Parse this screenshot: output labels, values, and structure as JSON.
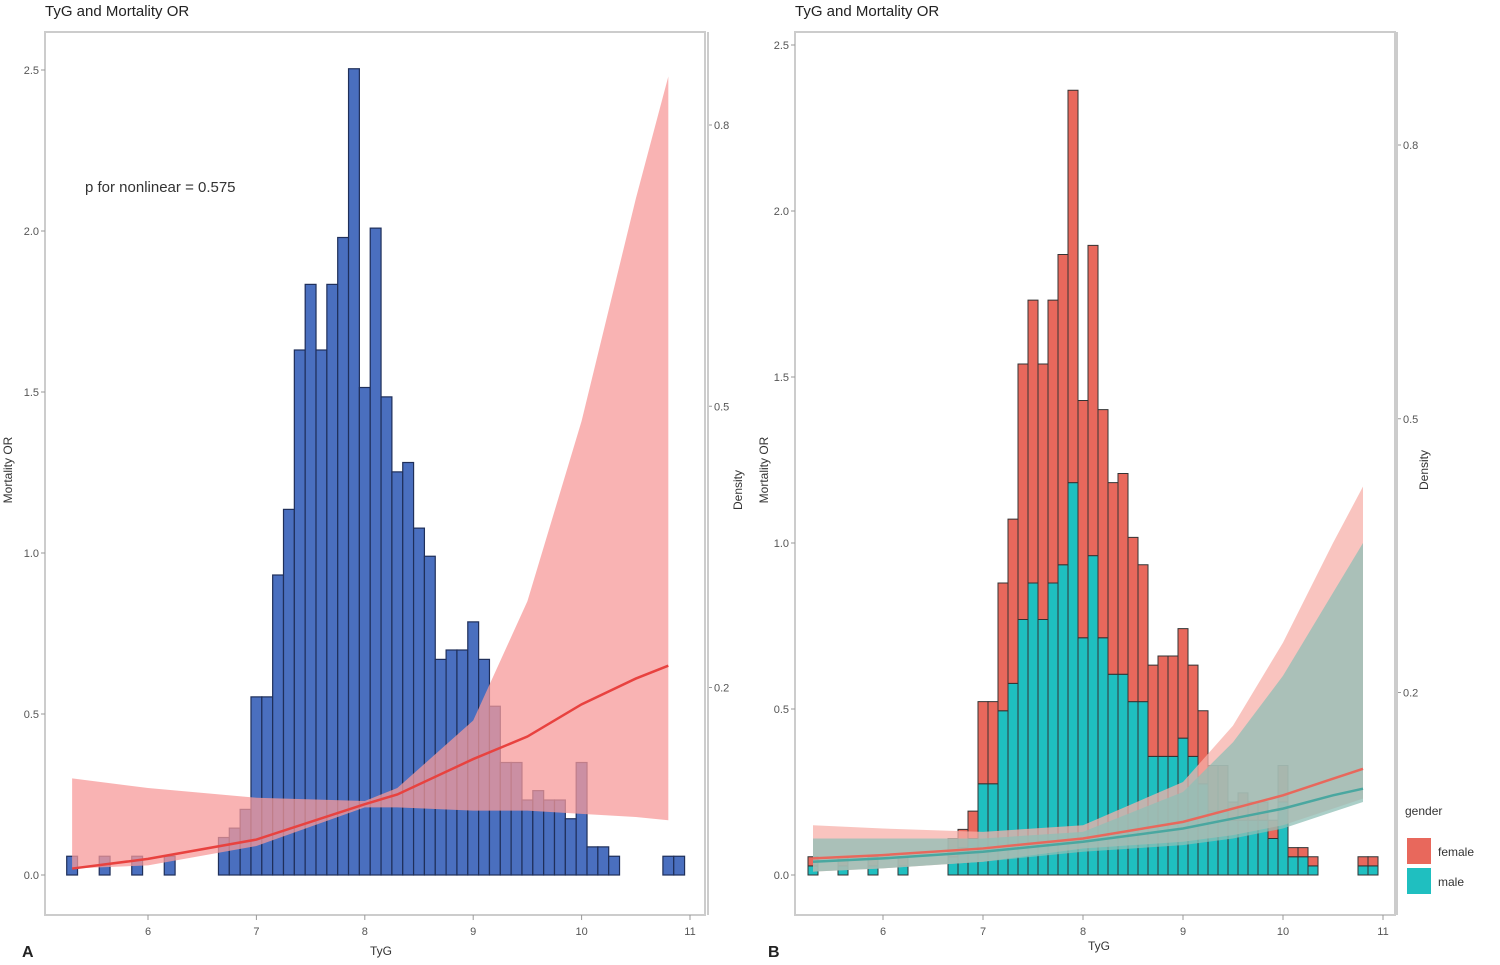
{
  "chart_data": [
    {
      "type": "bar+line",
      "panel_label": "A",
      "title": "TyG and Mortality OR",
      "xlabel": "TyG",
      "ylabel": "Mortality OR",
      "y2label": "Density",
      "annotation": "p for nonlinear = 0.575",
      "xlim": [
        5.2,
        11.1
      ],
      "x_ticks": [
        "6",
        "7",
        "8",
        "9",
        "10",
        "11"
      ],
      "ylim": [
        0,
        2.5
      ],
      "y_ticks": [
        "0.0",
        "0.5",
        "1.0",
        "1.5",
        "2.0",
        "2.5"
      ],
      "y2lim": [
        0,
        0.8
      ],
      "y2_ticks": [
        "0.2",
        "0.5",
        "0.8"
      ],
      "grid": false,
      "colors": {
        "bars": "#4a6fbf",
        "bar_edge": "#1f2f5a",
        "curve": "#e8423f",
        "ribbon": "#f79a9a"
      },
      "histogram": {
        "bin_width": 0.1,
        "x": [
          5.3,
          5.6,
          5.9,
          6.2,
          6.7,
          6.8,
          6.9,
          7.0,
          7.1,
          7.2,
          7.3,
          7.4,
          7.5,
          7.6,
          7.7,
          7.8,
          7.9,
          8.0,
          8.1,
          8.2,
          8.3,
          8.4,
          8.5,
          8.6,
          8.7,
          8.8,
          8.9,
          9.0,
          9.1,
          9.2,
          9.3,
          9.4,
          9.5,
          9.6,
          9.7,
          9.8,
          9.9,
          10.0,
          10.1,
          10.2,
          10.3,
          10.8,
          10.9
        ],
        "density": [
          0.02,
          0.02,
          0.02,
          0.02,
          0.04,
          0.05,
          0.07,
          0.19,
          0.19,
          0.32,
          0.39,
          0.56,
          0.63,
          0.56,
          0.63,
          0.68,
          0.86,
          0.52,
          0.69,
          0.51,
          0.43,
          0.44,
          0.37,
          0.34,
          0.23,
          0.24,
          0.24,
          0.27,
          0.23,
          0.18,
          0.12,
          0.12,
          0.08,
          0.09,
          0.08,
          0.08,
          0.06,
          0.12,
          0.03,
          0.03,
          0.02,
          0.02,
          0.02
        ]
      },
      "curves": [
        {
          "x": [
            5.3,
            6,
            7,
            8,
            8.3,
            9,
            9.5,
            10,
            10.5,
            10.8
          ],
          "or": [
            0.02,
            0.05,
            0.11,
            0.22,
            0.25,
            0.36,
            0.43,
            0.53,
            0.61,
            0.65
          ],
          "lower": [
            0.02,
            0.03,
            0.09,
            0.21,
            0.21,
            0.2,
            0.2,
            0.19,
            0.18,
            0.17
          ],
          "upper": [
            0.3,
            0.27,
            0.24,
            0.23,
            0.27,
            0.48,
            0.85,
            1.41,
            2.1,
            2.48
          ],
          "color": "#e8423f",
          "ribbon": "#f79a9a"
        }
      ]
    },
    {
      "type": "stacked-bar+line",
      "panel_label": "B",
      "title": "TyG and Mortality OR",
      "xlabel": "TyG",
      "ylabel": "Mortality OR",
      "y2label": "Density",
      "xlim": [
        5.2,
        11.1
      ],
      "x_ticks": [
        "6",
        "7",
        "8",
        "9",
        "10",
        "11"
      ],
      "ylim": [
        0,
        2.5
      ],
      "y_ticks": [
        "0.0",
        "0.5",
        "1.0",
        "1.5",
        "2.0",
        "2.5"
      ],
      "y2lim": [
        0,
        0.8
      ],
      "y2_ticks": [
        "0.2",
        "0.5",
        "0.8"
      ],
      "grid": false,
      "legend": {
        "title": "gender",
        "position": "right",
        "items": [
          {
            "label": "female",
            "color": "#e8685c"
          },
          {
            "label": "male",
            "color": "#1fbfc0"
          }
        ]
      },
      "histogram": {
        "bin_width": 0.1,
        "x": [
          5.3,
          5.6,
          5.9,
          6.2,
          6.7,
          6.8,
          6.9,
          7.0,
          7.1,
          7.2,
          7.3,
          7.4,
          7.5,
          7.6,
          7.7,
          7.8,
          7.9,
          8.0,
          8.1,
          8.2,
          8.3,
          8.4,
          8.5,
          8.6,
          8.7,
          8.8,
          8.9,
          9.0,
          9.1,
          9.2,
          9.3,
          9.4,
          9.5,
          9.6,
          9.7,
          9.8,
          9.9,
          10.0,
          10.1,
          10.2,
          10.3,
          10.8,
          10.9
        ],
        "series": [
          {
            "name": "male",
            "density": [
              0.01,
              0.01,
              0.01,
              0.01,
              0.02,
              0.03,
              0.04,
              0.1,
              0.1,
              0.18,
              0.21,
              0.28,
              0.32,
              0.28,
              0.32,
              0.34,
              0.43,
              0.26,
              0.35,
              0.26,
              0.22,
              0.22,
              0.19,
              0.19,
              0.13,
              0.13,
              0.13,
              0.15,
              0.13,
              0.1,
              0.07,
              0.07,
              0.06,
              0.06,
              0.06,
              0.06,
              0.04,
              0.08,
              0.02,
              0.02,
              0.01,
              0.01,
              0.01
            ]
          },
          {
            "name": "female",
            "density": [
              0.01,
              0.01,
              0.01,
              0.01,
              0.02,
              0.02,
              0.03,
              0.09,
              0.09,
              0.14,
              0.18,
              0.28,
              0.31,
              0.28,
              0.31,
              0.34,
              0.43,
              0.26,
              0.34,
              0.25,
              0.21,
              0.22,
              0.18,
              0.15,
              0.1,
              0.11,
              0.11,
              0.12,
              0.1,
              0.08,
              0.05,
              0.05,
              0.02,
              0.03,
              0.02,
              0.02,
              0.02,
              0.04,
              0.01,
              0.01,
              0.01,
              0.01,
              0.01
            ]
          }
        ]
      },
      "curves": [
        {
          "name": "female",
          "x": [
            5.3,
            6,
            7,
            8,
            9,
            9.5,
            10,
            10.5,
            10.8
          ],
          "or": [
            0.05,
            0.06,
            0.08,
            0.11,
            0.16,
            0.2,
            0.24,
            0.29,
            0.32
          ],
          "lower": [
            0.01,
            0.02,
            0.04,
            0.08,
            0.1,
            0.12,
            0.15,
            0.2,
            0.23
          ],
          "upper": [
            0.15,
            0.14,
            0.13,
            0.15,
            0.28,
            0.45,
            0.7,
            1.0,
            1.17
          ],
          "color": "#e8685c",
          "ribbon": "#f7b0aa"
        },
        {
          "name": "male",
          "x": [
            5.3,
            6,
            7,
            8,
            9,
            9.5,
            10,
            10.5,
            10.8
          ],
          "or": [
            0.04,
            0.05,
            0.07,
            0.1,
            0.14,
            0.17,
            0.2,
            0.24,
            0.26
          ],
          "lower": [
            0.01,
            0.02,
            0.04,
            0.07,
            0.09,
            0.11,
            0.14,
            0.19,
            0.22
          ],
          "upper": [
            0.11,
            0.11,
            0.11,
            0.13,
            0.25,
            0.4,
            0.6,
            0.85,
            1.0
          ],
          "color": "#4aa7a0",
          "ribbon": "#8fbfb6"
        }
      ]
    }
  ]
}
